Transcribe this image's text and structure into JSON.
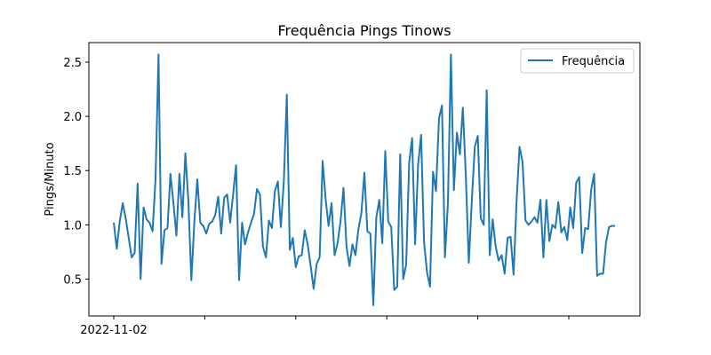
{
  "chart_data": {
    "type": "line",
    "title": "Frequência Pings Tinows",
    "xlabel": "",
    "ylabel": "Pings/Minuto",
    "x_tick_labels": [
      "2022-11-02",
      "",
      "",
      "",
      "",
      ""
    ],
    "y_ticks": [
      0.5,
      1.0,
      1.5,
      2.0,
      2.5
    ],
    "y_tick_labels": [
      "0.5",
      "1.0",
      "1.5",
      "2.0",
      "2.5"
    ],
    "ylim": [
      0.16,
      2.68
    ],
    "grid": false,
    "legend_position": "top-right",
    "colors": {
      "series": "#1f77b4"
    },
    "series": [
      {
        "name": "Frequência",
        "values": [
          1.02,
          0.78,
          1.03,
          1.2,
          1.06,
          0.88,
          0.7,
          0.74,
          1.38,
          0.5,
          1.16,
          1.05,
          1.02,
          0.94,
          1.42,
          2.57,
          0.64,
          0.95,
          0.97,
          1.47,
          1.2,
          0.9,
          1.47,
          1.07,
          1.66,
          1.22,
          0.49,
          1.02,
          1.42,
          1.02,
          0.99,
          0.92,
          1.01,
          1.03,
          1.09,
          1.26,
          0.92,
          1.25,
          1.28,
          1.02,
          1.28,
          1.55,
          0.49,
          1.02,
          0.82,
          0.93,
          1.02,
          1.1,
          1.33,
          1.28,
          0.8,
          0.7,
          1.04,
          0.97,
          1.31,
          1.4,
          0.98,
          1.4,
          2.2,
          0.77,
          0.88,
          0.61,
          0.71,
          0.72,
          0.95,
          0.82,
          0.62,
          0.41,
          0.64,
          0.7,
          1.59,
          1.24,
          0.99,
          1.2,
          0.72,
          0.83,
          1.03,
          1.34,
          0.8,
          0.62,
          0.82,
          0.72,
          0.96,
          1.11,
          1.48,
          0.94,
          0.92,
          0.26,
          1.07,
          1.23,
          0.83,
          1.68,
          1.03,
          0.98,
          0.4,
          0.43,
          1.65,
          0.5,
          0.63,
          1.57,
          1.8,
          0.82,
          1.55,
          1.83,
          0.84,
          0.56,
          0.43,
          1.49,
          1.31,
          1.98,
          2.1,
          0.7,
          1.2,
          2.57,
          1.32,
          1.85,
          1.65,
          2.08,
          1.45,
          0.65,
          1.22,
          1.72,
          1.82,
          1.06,
          1.0,
          2.24,
          0.72,
          1.05,
          0.8,
          0.67,
          0.72,
          0.55,
          0.88,
          0.89,
          0.54,
          1.21,
          1.72,
          1.58,
          1.04,
          1.0,
          1.03,
          1.07,
          1.02,
          1.23,
          0.7,
          1.23,
          0.85,
          1.0,
          0.97,
          1.21,
          0.93,
          0.98,
          0.86,
          1.16,
          0.97,
          1.39,
          1.44,
          0.74,
          0.97,
          0.96,
          1.32,
          1.47,
          0.53,
          0.55,
          0.55,
          0.84,
          0.98,
          0.99,
          0.99
        ]
      }
    ]
  }
}
